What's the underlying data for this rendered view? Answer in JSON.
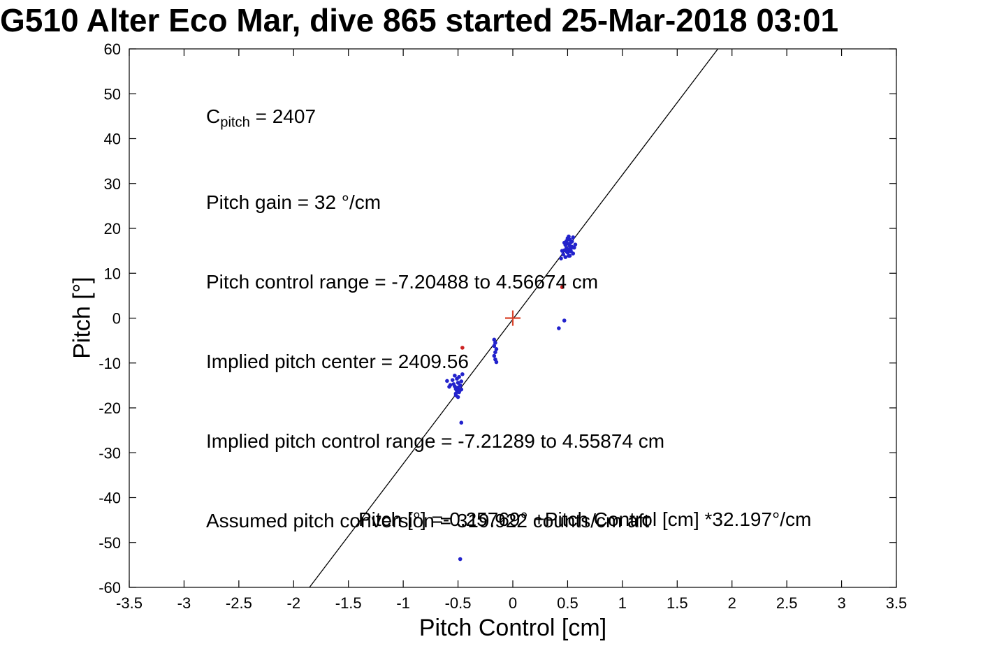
{
  "chart_data": {
    "type": "scatter",
    "title": "G510 Alter Eco Mar, dive 865 started 25-Mar-2018 03:01",
    "xlabel": "Pitch Control [cm]",
    "ylabel": "Pitch [°]",
    "xlim": [
      -3.5,
      3.5
    ],
    "ylim": [
      -60,
      60
    ],
    "xtick_labels": [
      "-3.5",
      "-3",
      "-2.5",
      "-2",
      "-1.5",
      "-1",
      "-0.5",
      "0",
      "0.5",
      "1",
      "1.5",
      "2",
      "2.5",
      "3",
      "3.5"
    ],
    "ytick_labels": [
      "-60",
      "-50",
      "-40",
      "-30",
      "-20",
      "-10",
      "0",
      "10",
      "20",
      "30",
      "40",
      "50",
      "60"
    ],
    "grid": false,
    "legend": "none",
    "annotations": {
      "cpitch": {
        "base": "C",
        "sub": "pitch",
        "rest": " = 2407"
      },
      "lines": [
        "Pitch gain = 32 °/cm",
        "Pitch control range = -7.20488 to 4.56674 cm",
        "Implied pitch center = 2409.56",
        "Implied pitch control range = -7.21289 to 4.55874 cm",
        "Assumed pitch conversion = 319.922 counts/cm aft"
      ],
      "fit_equation": "Pitch [°] =-0.25769° +Pitch Control [cm] *32.197°/cm"
    },
    "fit_line": {
      "slope": 32.197,
      "intercept": -0.25769,
      "color": "#000000"
    },
    "series": [
      {
        "name": "pitch-observations",
        "marker": "dot",
        "color": "#2222cc",
        "points": [
          [
            0.5,
            17.8
          ],
          [
            0.51,
            18.2
          ],
          [
            0.52,
            17.5
          ],
          [
            0.49,
            17.2
          ],
          [
            0.53,
            16.9
          ],
          [
            0.5,
            16.6
          ],
          [
            0.48,
            16.3
          ],
          [
            0.52,
            16.1
          ],
          [
            0.54,
            15.9
          ],
          [
            0.49,
            15.6
          ],
          [
            0.51,
            15.3
          ],
          [
            0.47,
            15.1
          ],
          [
            0.53,
            14.9
          ],
          [
            0.5,
            14.6
          ],
          [
            0.55,
            14.4
          ],
          [
            0.46,
            14.2
          ],
          [
            0.52,
            13.9
          ],
          [
            0.48,
            13.6
          ],
          [
            0.56,
            15.7
          ],
          [
            0.57,
            16.4
          ],
          [
            0.44,
            13.3
          ],
          [
            0.45,
            15.0
          ],
          [
            0.54,
            17.1
          ],
          [
            0.47,
            16.8
          ],
          [
            0.55,
            18.0
          ],
          [
            0.51,
            13.9
          ],
          [
            0.49,
            14.9
          ],
          [
            0.53,
            15.5
          ],
          [
            0.47,
            -0.54
          ],
          [
            0.42,
            -2.26
          ],
          [
            -0.52,
            -15.8
          ],
          [
            -0.51,
            -16.2
          ],
          [
            -0.5,
            -15.5
          ],
          [
            -0.53,
            -15.2
          ],
          [
            -0.49,
            -16.5
          ],
          [
            -0.52,
            -16.8
          ],
          [
            -0.48,
            -15.0
          ],
          [
            -0.54,
            -14.7
          ],
          [
            -0.5,
            -14.4
          ],
          [
            -0.47,
            -14.1
          ],
          [
            -0.55,
            -13.8
          ],
          [
            -0.51,
            -13.5
          ],
          [
            -0.49,
            -13.1
          ],
          [
            -0.53,
            -12.8
          ],
          [
            -0.46,
            -12.5
          ],
          [
            -0.57,
            -14.9
          ],
          [
            -0.58,
            -15.3
          ],
          [
            -0.6,
            -14.0
          ],
          [
            -0.48,
            -16.0
          ],
          [
            -0.52,
            -17.2
          ],
          [
            -0.5,
            -17.6
          ],
          [
            -0.47,
            -15.9
          ],
          [
            -0.17,
            -4.8
          ],
          [
            -0.16,
            -5.5
          ],
          [
            -0.17,
            -6.2
          ],
          [
            -0.15,
            -6.9
          ],
          [
            -0.16,
            -7.6
          ],
          [
            -0.17,
            -8.4
          ],
          [
            -0.16,
            -9.2
          ],
          [
            -0.15,
            -9.8
          ],
          [
            -0.47,
            -23.3
          ],
          [
            -0.48,
            -53.7
          ]
        ]
      },
      {
        "name": "flagged-observations",
        "marker": "dot",
        "color": "#cc2222",
        "points": [
          [
            -0.46,
            -6.6
          ],
          [
            0.45,
            6.9
          ]
        ]
      },
      {
        "name": "implied-center-marker",
        "marker": "plus",
        "color": "#d9442b",
        "points": [
          [
            0,
            0
          ]
        ]
      }
    ]
  }
}
